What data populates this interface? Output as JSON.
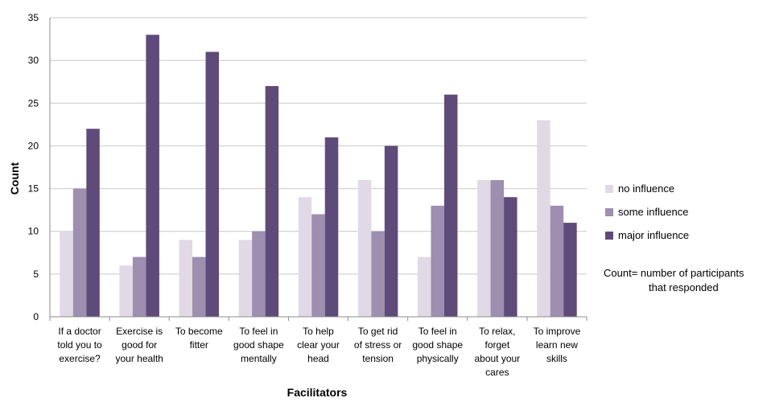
{
  "chart_data": {
    "type": "bar",
    "title": "",
    "xlabel": "Facilitators",
    "ylabel": "Count",
    "ylim": [
      0,
      35
    ],
    "yticks": [
      0,
      5,
      10,
      15,
      20,
      25,
      30,
      35
    ],
    "grid": true,
    "legend_position": "right",
    "categories": [
      [
        "If a doctor",
        "told you to",
        "exercise?"
      ],
      [
        "Exercise is",
        "good for",
        "your health"
      ],
      [
        "To become",
        "fitter"
      ],
      [
        "To feel in",
        "good shape",
        "mentally"
      ],
      [
        "To help",
        "clear your",
        "head"
      ],
      [
        "To get rid",
        "of stress or",
        "tension"
      ],
      [
        "To feel in",
        "good shape",
        "physically"
      ],
      [
        "To relax,",
        "forget",
        "about your",
        "cares"
      ],
      [
        "To improve",
        "learn new",
        "skills"
      ]
    ],
    "series": [
      {
        "name": "no influence",
        "color": "#e2d9e6",
        "values": [
          10,
          6,
          9,
          9,
          14,
          16,
          7,
          16,
          23
        ]
      },
      {
        "name": "some influence",
        "color": "#9e8eb0",
        "values": [
          15,
          7,
          7,
          10,
          12,
          10,
          13,
          16,
          13
        ]
      },
      {
        "name": "major influence",
        "color": "#5f4b7a",
        "values": [
          22,
          33,
          31,
          27,
          21,
          20,
          26,
          14,
          11
        ]
      }
    ],
    "note": [
      "Count= number of participants",
      "that responded"
    ]
  }
}
